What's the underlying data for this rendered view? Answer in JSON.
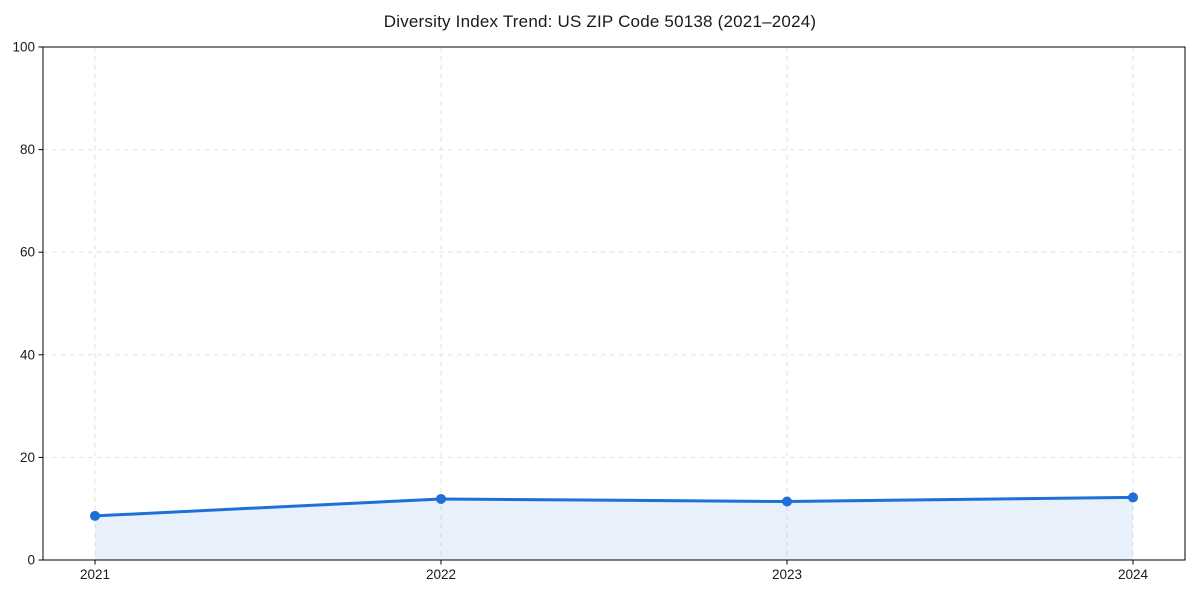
{
  "figure": {
    "background": "#ffffff"
  },
  "chart_data": {
    "type": "area",
    "title": "Diversity Index Trend: US ZIP Code 50138 (2021–2024)",
    "x": [
      "2021",
      "2022",
      "2023",
      "2024"
    ],
    "values": [
      8.6,
      11.9,
      11.4,
      12.2
    ],
    "xlabel": "",
    "ylabel": "",
    "ylim": [
      0,
      100
    ],
    "yticks": [
      0,
      20,
      40,
      60,
      80,
      100
    ],
    "grid": true,
    "grid_style": "dashed",
    "legend": "none",
    "colors": {
      "line": "#1f6fd8",
      "marker": "#1f6fd8",
      "fill": "#1f6fd8",
      "grid": "#e2e2e2",
      "frame": "#000000",
      "text": "#1a1a1a"
    },
    "fill_opacity": 0.1,
    "line_width": 3,
    "marker_radius": 5
  }
}
